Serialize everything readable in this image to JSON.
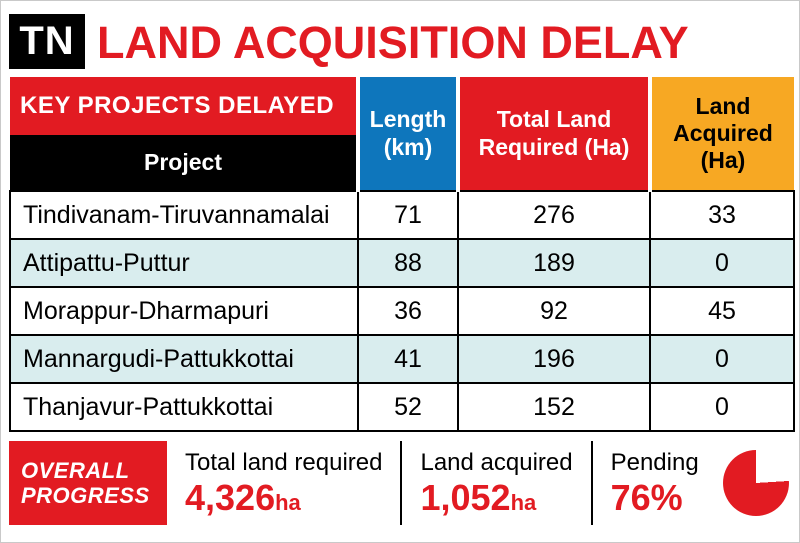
{
  "header": {
    "tag": "TN",
    "title": "LAND ACQUISITION DELAY"
  },
  "table": {
    "section_title": "KEY PROJECTS DELAYED",
    "project_header": "Project",
    "col_length": "Length (km)",
    "col_total": "Total Land Required (Ha)",
    "col_acquired": "Land Acquired (Ha)",
    "rows": [
      {
        "project": "Tindivanam-Tiruvannamalai",
        "length": "71",
        "total": "276",
        "acquired": "33"
      },
      {
        "project": "Attipattu-Puttur",
        "length": "88",
        "total": "189",
        "acquired": "0"
      },
      {
        "project": "Morappur-Dharmapuri",
        "length": "36",
        "total": "92",
        "acquired": "45"
      },
      {
        "project": "Mannargudi-Pattukkottai",
        "length": "41",
        "total": "196",
        "acquired": "0"
      },
      {
        "project": "Thanjavur-Pattukkottai",
        "length": "52",
        "total": "152",
        "acquired": "0"
      }
    ]
  },
  "footer": {
    "overall_line1": "OVERALL",
    "overall_line2": "PROGRESS",
    "stats": [
      {
        "label": "Total land required",
        "value": "4,326",
        "unit": "ha"
      },
      {
        "label": "Land acquired",
        "value": "1,052",
        "unit": "ha"
      },
      {
        "label": "Pending",
        "value": "76%",
        "unit": ""
      }
    ],
    "pie_pending_percent": 76
  },
  "colors": {
    "accent_red": "#e21b22",
    "header_blue": "#0e76bc",
    "header_orange": "#f7a823",
    "row_tint": "#d9edee",
    "black": "#000000"
  },
  "chart_data": [
    {
      "type": "table",
      "title": "KEY PROJECTS DELAYED",
      "columns": [
        "Project",
        "Length (km)",
        "Total Land Required (Ha)",
        "Land Acquired (Ha)"
      ],
      "rows": [
        [
          "Tindivanam-Tiruvannamalai",
          71,
          276,
          33
        ],
        [
          "Attipattu-Puttur",
          88,
          189,
          0
        ],
        [
          "Morappur-Dharmapuri",
          36,
          92,
          45
        ],
        [
          "Mannargudi-Pattukkottai",
          41,
          196,
          0
        ],
        [
          "Thanjavur-Pattukkottai",
          52,
          152,
          0
        ]
      ]
    },
    {
      "type": "pie",
      "title": "Overall progress",
      "labels": [
        "Pending",
        "Completed"
      ],
      "values": [
        76,
        24
      ],
      "annotations": [
        "Total land required 4,326 ha",
        "Land acquired 1,052 ha",
        "Pending 76%"
      ]
    }
  ]
}
